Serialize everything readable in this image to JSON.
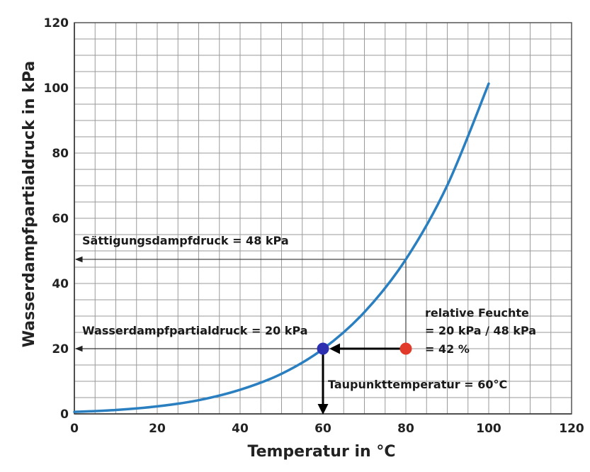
{
  "chart_data": {
    "type": "line",
    "xlabel": "Temperatur in °C",
    "ylabel": "Wasserdampfpartialdruck in kPa",
    "xlim": [
      0,
      120
    ],
    "ylim": [
      0,
      120
    ],
    "x_ticks": [
      0,
      20,
      40,
      60,
      80,
      100,
      120
    ],
    "y_ticks": [
      0,
      20,
      40,
      60,
      80,
      100,
      120
    ],
    "grid": true,
    "series": [
      {
        "color": "#2a7fc0",
        "x": [
          0,
          10,
          20,
          30,
          40,
          50,
          60,
          70,
          80,
          90,
          100
        ],
        "y": [
          0.6,
          1.2,
          2.3,
          4.2,
          7.4,
          12.3,
          19.9,
          31.2,
          47.4,
          70.1,
          101.3
        ]
      }
    ],
    "points": [
      {
        "name": "blue-point",
        "x": 60,
        "y": 20,
        "color": "#2b2fb0"
      },
      {
        "name": "red-point",
        "x": 80,
        "y": 20,
        "color": "#e23a2a"
      }
    ],
    "annotations": {
      "saturation": "Sättigungsdampfdruck = 48 kPa",
      "partial": "Wasserdampfpartialdruck = 20 kPa",
      "dewpoint": "Taupunkttemperatur = 60°C",
      "rh_line1": "relative Feuchte",
      "rh_line2": "= 20 kPa / 48 kPa",
      "rh_line3": "= 42 %"
    }
  }
}
